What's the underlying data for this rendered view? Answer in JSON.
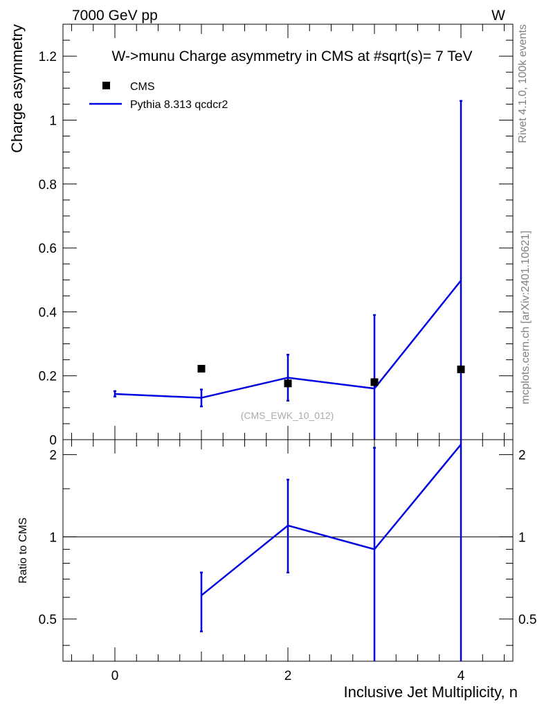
{
  "header": {
    "left": "7000 GeV pp",
    "right": "W"
  },
  "side_labels": {
    "rivet": "Rivet 4.1.0,  100k events",
    "mcplots": "mcplots.cern.ch [arXiv:2401.10621]"
  },
  "colors": {
    "mc": "#0000e0",
    "data": "#000000",
    "side_text": "#808080"
  },
  "chart_data": [
    {
      "type": "scatter",
      "title": "W->munu Charge asymmetry in CMS at #sqrt(s)= 7 TeV",
      "ylabel": "Charge asymmetry",
      "xlabel": "",
      "xlim": [
        -0.6,
        4.6
      ],
      "ylim": [
        0,
        1.3
      ],
      "y_ticks": [
        0,
        0.2,
        0.4,
        0.6,
        0.8,
        1,
        1.2
      ],
      "y_tick_labels": [
        "0",
        "0.2",
        "0.4",
        "0.6",
        "0.8",
        "1",
        "1.2"
      ],
      "annotation": "(CMS_EWK_10_012)",
      "legend": {
        "placement": "top-left",
        "entries": [
          "CMS",
          "Pythia 8.313 qcdcr2"
        ]
      },
      "series": [
        {
          "name": "CMS",
          "style": "markers",
          "x": [
            1,
            2,
            3,
            4
          ],
          "y": [
            0.222,
            0.176,
            0.18,
            0.22
          ]
        },
        {
          "name": "Pythia 8.313 qcdcr2",
          "style": "line",
          "x": [
            0,
            1,
            2,
            3,
            4
          ],
          "y": [
            0.143,
            0.131,
            0.194,
            0.16,
            0.498
          ],
          "err_low": [
            0.135,
            0.104,
            0.122,
            0.0,
            0.0
          ],
          "err_high": [
            0.152,
            0.157,
            0.266,
            0.39,
            1.06
          ]
        }
      ]
    },
    {
      "type": "line",
      "title": "",
      "ylabel": "Ratio to CMS",
      "xlabel": "Inclusive Jet Multiplicity, n",
      "xlim": [
        -0.6,
        4.6
      ],
      "ylim": [
        0.35,
        2.27
      ],
      "y_ticks": [
        0.5,
        1,
        2
      ],
      "y_tick_labels": [
        "0.5",
        "1",
        "2"
      ],
      "x_ticks": [
        0,
        2,
        4
      ],
      "x_tick_labels": [
        "0",
        "2",
        "4"
      ],
      "reference": 1,
      "series": [
        {
          "name": "Pythia 8.313 qcdcr2",
          "x": [
            1,
            2,
            3,
            4
          ],
          "y": [
            0.61,
            1.1,
            0.9,
            2.18
          ],
          "err_low": [
            0.45,
            0.74,
            0.35,
            0.35
          ],
          "err_high": [
            0.74,
            1.62,
            2.12,
            2.27
          ]
        }
      ]
    }
  ]
}
